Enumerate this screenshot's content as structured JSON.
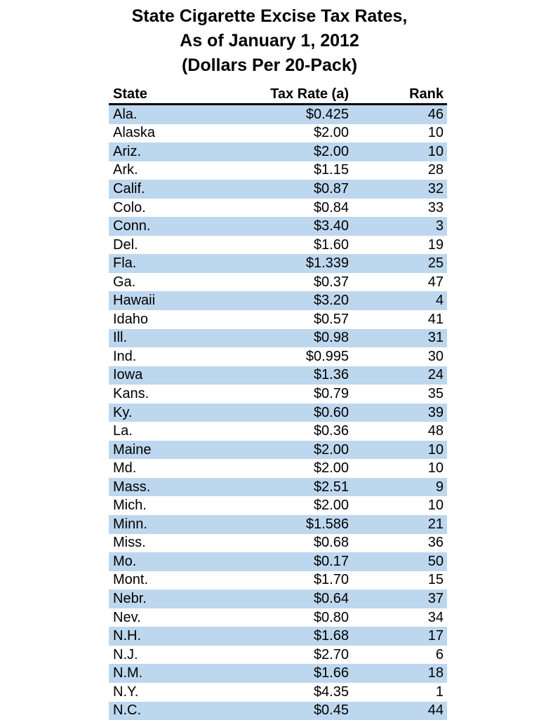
{
  "title": {
    "line1": "State Cigarette Excise Tax Rates,",
    "line2": "As of January 1, 2012",
    "line3": "(Dollars Per 20-Pack)"
  },
  "table": {
    "columns": [
      "State",
      "Tax Rate (a)",
      "Rank"
    ],
    "rows": [
      {
        "state": "Ala.",
        "tax_rate": "$0.425",
        "rank": "46"
      },
      {
        "state": "Alaska",
        "tax_rate": "$2.00",
        "rank": "10"
      },
      {
        "state": "Ariz.",
        "tax_rate": "$2.00",
        "rank": "10"
      },
      {
        "state": "Ark.",
        "tax_rate": "$1.15",
        "rank": "28"
      },
      {
        "state": "Calif.",
        "tax_rate": "$0.87",
        "rank": "32"
      },
      {
        "state": "Colo.",
        "tax_rate": "$0.84",
        "rank": "33"
      },
      {
        "state": "Conn.",
        "tax_rate": "$3.40",
        "rank": "3"
      },
      {
        "state": "Del.",
        "tax_rate": "$1.60",
        "rank": "19"
      },
      {
        "state": "Fla.",
        "tax_rate": "$1.339",
        "rank": "25"
      },
      {
        "state": "Ga.",
        "tax_rate": "$0.37",
        "rank": "47"
      },
      {
        "state": "Hawaii",
        "tax_rate": "$3.20",
        "rank": "4"
      },
      {
        "state": "Idaho",
        "tax_rate": "$0.57",
        "rank": "41"
      },
      {
        "state": "Ill.",
        "tax_rate": "$0.98",
        "rank": "31"
      },
      {
        "state": "Ind.",
        "tax_rate": "$0.995",
        "rank": "30"
      },
      {
        "state": "Iowa",
        "tax_rate": "$1.36",
        "rank": "24"
      },
      {
        "state": "Kans.",
        "tax_rate": "$0.79",
        "rank": "35"
      },
      {
        "state": "Ky.",
        "tax_rate": "$0.60",
        "rank": "39"
      },
      {
        "state": "La.",
        "tax_rate": "$0.36",
        "rank": "48"
      },
      {
        "state": "Maine",
        "tax_rate": "$2.00",
        "rank": "10"
      },
      {
        "state": "Md.",
        "tax_rate": "$2.00",
        "rank": "10"
      },
      {
        "state": "Mass.",
        "tax_rate": "$2.51",
        "rank": "9"
      },
      {
        "state": "Mich.",
        "tax_rate": "$2.00",
        "rank": "10"
      },
      {
        "state": "Minn.",
        "tax_rate": "$1.586",
        "rank": "21"
      },
      {
        "state": "Miss.",
        "tax_rate": "$0.68",
        "rank": "36"
      },
      {
        "state": "Mo.",
        "tax_rate": "$0.17",
        "rank": "50"
      },
      {
        "state": "Mont.",
        "tax_rate": "$1.70",
        "rank": "15"
      },
      {
        "state": "Nebr.",
        "tax_rate": "$0.64",
        "rank": "37"
      },
      {
        "state": "Nev.",
        "tax_rate": "$0.80",
        "rank": "34"
      },
      {
        "state": "N.H.",
        "tax_rate": "$1.68",
        "rank": "17"
      },
      {
        "state": "N.J.",
        "tax_rate": "$2.70",
        "rank": "6"
      },
      {
        "state": "N.M.",
        "tax_rate": "$1.66",
        "rank": "18"
      },
      {
        "state": "N.Y.",
        "tax_rate": "$4.35",
        "rank": "1"
      },
      {
        "state": "N.C.",
        "tax_rate": "$0.45",
        "rank": "44"
      }
    ]
  },
  "colors": {
    "row_highlight": "#BDD7EE",
    "header_rule": "#000000",
    "text": "#000000",
    "background": "#FFFFFF"
  }
}
